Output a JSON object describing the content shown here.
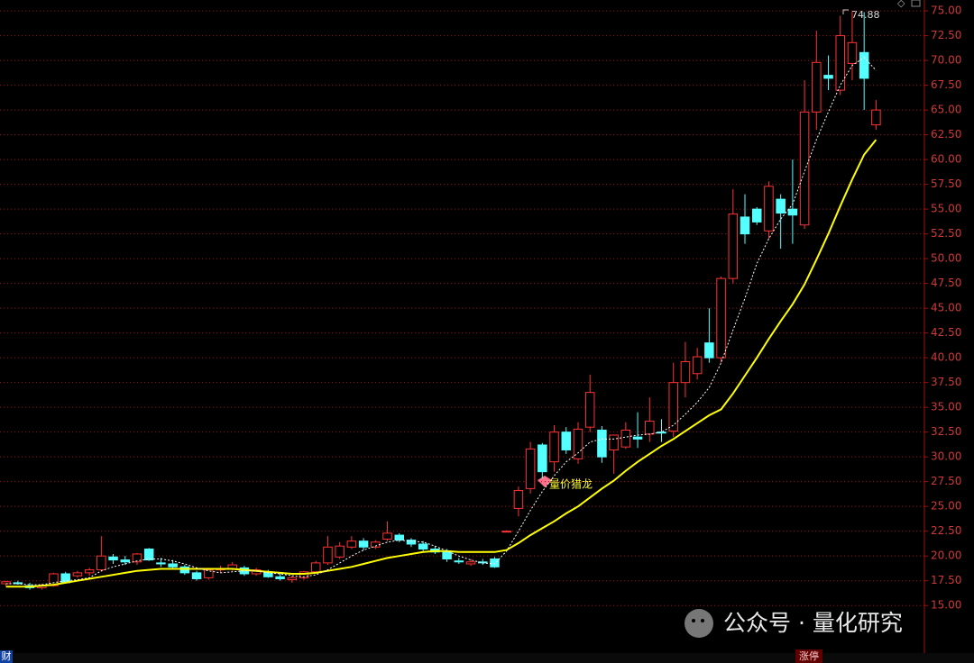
{
  "chart_data": {
    "type": "candlestick",
    "open": [
      17.2,
      17.3,
      17.0,
      16.8,
      17.0,
      18.2,
      18.0,
      18.3,
      18.6,
      19.9,
      19.6,
      19.4,
      20.7,
      19.3,
      19.2,
      18.9,
      18.3,
      17.8,
      18.6,
      18.7,
      18.8,
      18.2,
      18.3,
      17.9,
      17.6,
      17.8,
      18.4,
      19.3,
      19.9,
      20.9,
      21.5,
      20.9,
      21.7,
      22.1,
      21.6,
      21.2,
      20.7,
      20.5,
      19.5,
      19.2,
      19.4,
      19.7,
      22.5,
      24.8,
      26.8,
      31.2,
      29.5,
      32.5,
      29.8,
      33.0,
      32.7,
      30.7,
      31.0,
      32.0,
      32.3,
      32.5,
      32.6,
      37.5,
      38.4,
      41.5,
      40.0,
      48.0,
      54.2,
      55.0,
      52.8,
      56.0,
      55.0,
      53.4,
      64.8,
      68.5,
      67.0,
      69.7,
      70.8,
      63.5
    ],
    "high": [
      17.5,
      17.5,
      17.3,
      17.2,
      18.3,
      18.4,
      18.5,
      18.8,
      22.0,
      20.2,
      20.0,
      20.3,
      20.8,
      19.8,
      19.6,
      19.1,
      18.5,
      18.8,
      19.0,
      19.4,
      19.0,
      18.8,
      18.6,
      18.3,
      18.0,
      18.5,
      19.5,
      22.0,
      21.4,
      22.0,
      21.8,
      21.6,
      23.5,
      22.3,
      21.8,
      21.5,
      21.0,
      20.7,
      19.8,
      19.7,
      19.7,
      19.9,
      22.6,
      27.0,
      31.5,
      31.4,
      33.2,
      33.0,
      33.5,
      38.3,
      33.1,
      32.2,
      33.5,
      34.5,
      36.0,
      33.8,
      39.5,
      41.6,
      41.0,
      45.0,
      48.2,
      57.0,
      56.5,
      55.2,
      57.8,
      56.5,
      60.0,
      68.0,
      73.0,
      70.5,
      74.5,
      74.9,
      74.88,
      66.0
    ],
    "low": [
      17.0,
      17.1,
      16.6,
      16.6,
      16.9,
      17.2,
      17.8,
      18.0,
      18.4,
      19.2,
      19.1,
      19.1,
      19.5,
      18.9,
      18.7,
      18.1,
      17.5,
      17.6,
      18.3,
      18.5,
      18.0,
      18.0,
      17.8,
      17.5,
      17.3,
      17.6,
      18.3,
      19.1,
      19.7,
      20.7,
      20.6,
      20.7,
      21.5,
      21.4,
      20.9,
      20.5,
      20.2,
      19.4,
      19.2,
      19.0,
      19.1,
      18.8,
      22.4,
      24.0,
      26.3,
      27.8,
      28.5,
      30.3,
      29.3,
      32.5,
      29.4,
      28.3,
      30.8,
      30.9,
      31.5,
      31.5,
      32.0,
      36.0,
      37.8,
      39.5,
      39.5,
      47.5,
      51.5,
      53.4,
      52.0,
      51.0,
      51.5,
      53.0,
      63.0,
      67.0,
      66.5,
      68.0,
      65.0,
      63.0
    ],
    "close": [
      17.4,
      17.2,
      16.8,
      17.0,
      18.2,
      17.3,
      18.3,
      18.6,
      20.0,
      19.6,
      19.4,
      20.2,
      19.6,
      19.2,
      18.9,
      18.3,
      17.7,
      18.6,
      18.7,
      19.1,
      18.2,
      18.6,
      17.9,
      17.7,
      17.8,
      18.4,
      19.3,
      20.9,
      21.0,
      21.5,
      20.9,
      21.4,
      22.3,
      21.6,
      21.2,
      20.7,
      20.4,
      19.7,
      19.4,
      19.4,
      19.3,
      18.9,
      22.5,
      26.6,
      30.8,
      28.5,
      32.5,
      30.7,
      32.8,
      36.5,
      30.0,
      32.2,
      32.7,
      31.8,
      33.6,
      32.4,
      37.5,
      39.6,
      40.1,
      40.0,
      48.0,
      54.5,
      52.5,
      53.7,
      57.3,
      54.6,
      54.4,
      64.8,
      69.8,
      68.2,
      72.5,
      71.8,
      68.2,
      65.0
    ],
    "up_color": "#ff3232",
    "down_color": "#54ffff",
    "ma_lines": [
      {
        "color": "#ffff00",
        "dashed": false,
        "values": [
          16.9,
          16.9,
          16.9,
          17.0,
          17.1,
          17.3,
          17.5,
          17.7,
          17.9,
          18.1,
          18.3,
          18.5,
          18.6,
          18.7,
          18.7,
          18.7,
          18.7,
          18.7,
          18.7,
          18.7,
          18.6,
          18.5,
          18.4,
          18.3,
          18.2,
          18.2,
          18.3,
          18.5,
          18.7,
          18.9,
          19.2,
          19.5,
          19.8,
          20.0,
          20.2,
          20.4,
          20.5,
          20.5,
          20.4,
          20.4,
          20.4,
          20.4,
          20.6,
          21.3,
          22.1,
          22.8,
          23.5,
          24.3,
          25.0,
          25.9,
          26.8,
          27.6,
          28.6,
          29.5,
          30.3,
          31.1,
          31.8,
          32.6,
          33.4,
          34.2,
          34.8,
          36.4,
          38.2,
          40.0,
          41.9,
          43.7,
          45.4,
          47.4,
          49.9,
          52.5,
          55.3,
          58.0,
          60.5,
          62.0
        ]
      },
      {
        "color": "#ffffff",
        "dashed": true,
        "values": [
          17.2,
          17.2,
          17.1,
          17.1,
          17.3,
          17.5,
          17.6,
          17.8,
          18.5,
          18.9,
          19.2,
          19.5,
          19.7,
          19.7,
          19.5,
          19.2,
          18.8,
          18.5,
          18.3,
          18.4,
          18.5,
          18.5,
          18.3,
          18.2,
          18.0,
          17.9,
          18.1,
          18.6,
          19.3,
          20.0,
          20.6,
          21.0,
          21.4,
          21.6,
          21.5,
          21.4,
          21.0,
          20.5,
          20.0,
          19.6,
          19.3,
          19.2,
          20.5,
          22.5,
          24.6,
          26.5,
          28.1,
          29.5,
          30.4,
          31.5,
          31.8,
          31.8,
          32.0,
          32.2,
          32.3,
          32.5,
          33.2,
          34.3,
          35.5,
          37.0,
          39.5,
          42.8,
          46.0,
          49.5,
          52.0,
          54.0,
          55.5,
          58.8,
          62.0,
          64.8,
          67.5,
          69.5,
          70.3,
          69.0
        ]
      }
    ],
    "ylim": [
      10.2,
      76.1
    ],
    "yticks": [
      {
        "value": 15,
        "label": "15.00"
      },
      {
        "value": 17.5,
        "label": "17.50"
      },
      {
        "value": 20,
        "label": "20.00"
      },
      {
        "value": 22.5,
        "label": "22.50"
      },
      {
        "value": 25,
        "label": "25.00"
      },
      {
        "value": 27.5,
        "label": "27.50"
      },
      {
        "value": 30,
        "label": "30.00"
      },
      {
        "value": 32.5,
        "label": "32.50"
      },
      {
        "value": 35,
        "label": "35.00"
      },
      {
        "value": 37.5,
        "label": "37.50"
      },
      {
        "value": 40,
        "label": "40.00"
      },
      {
        "value": 42.5,
        "label": "42.50"
      },
      {
        "value": 45,
        "label": "45.00"
      },
      {
        "value": 47.5,
        "label": "47.50"
      },
      {
        "value": 50,
        "label": "50.00"
      },
      {
        "value": 52.5,
        "label": "52.50"
      },
      {
        "value": 55,
        "label": "55.00"
      },
      {
        "value": 57.5,
        "label": "57.50"
      },
      {
        "value": 60,
        "label": "60.00"
      },
      {
        "value": 62.5,
        "label": "62.50"
      },
      {
        "value": 65,
        "label": "65.00"
      },
      {
        "value": 67.5,
        "label": "67.50"
      },
      {
        "value": 70,
        "label": "70.00"
      },
      {
        "value": 72.5,
        "label": "72.50"
      },
      {
        "value": 75,
        "label": "75.00"
      }
    ],
    "grid": true,
    "grid_color": "#a01010",
    "high_label": "74.88",
    "signal_label": "量价猎龙",
    "watermark": "公众号 · 量化研究",
    "footer_left": "财",
    "footer_tab": "涨停"
  }
}
